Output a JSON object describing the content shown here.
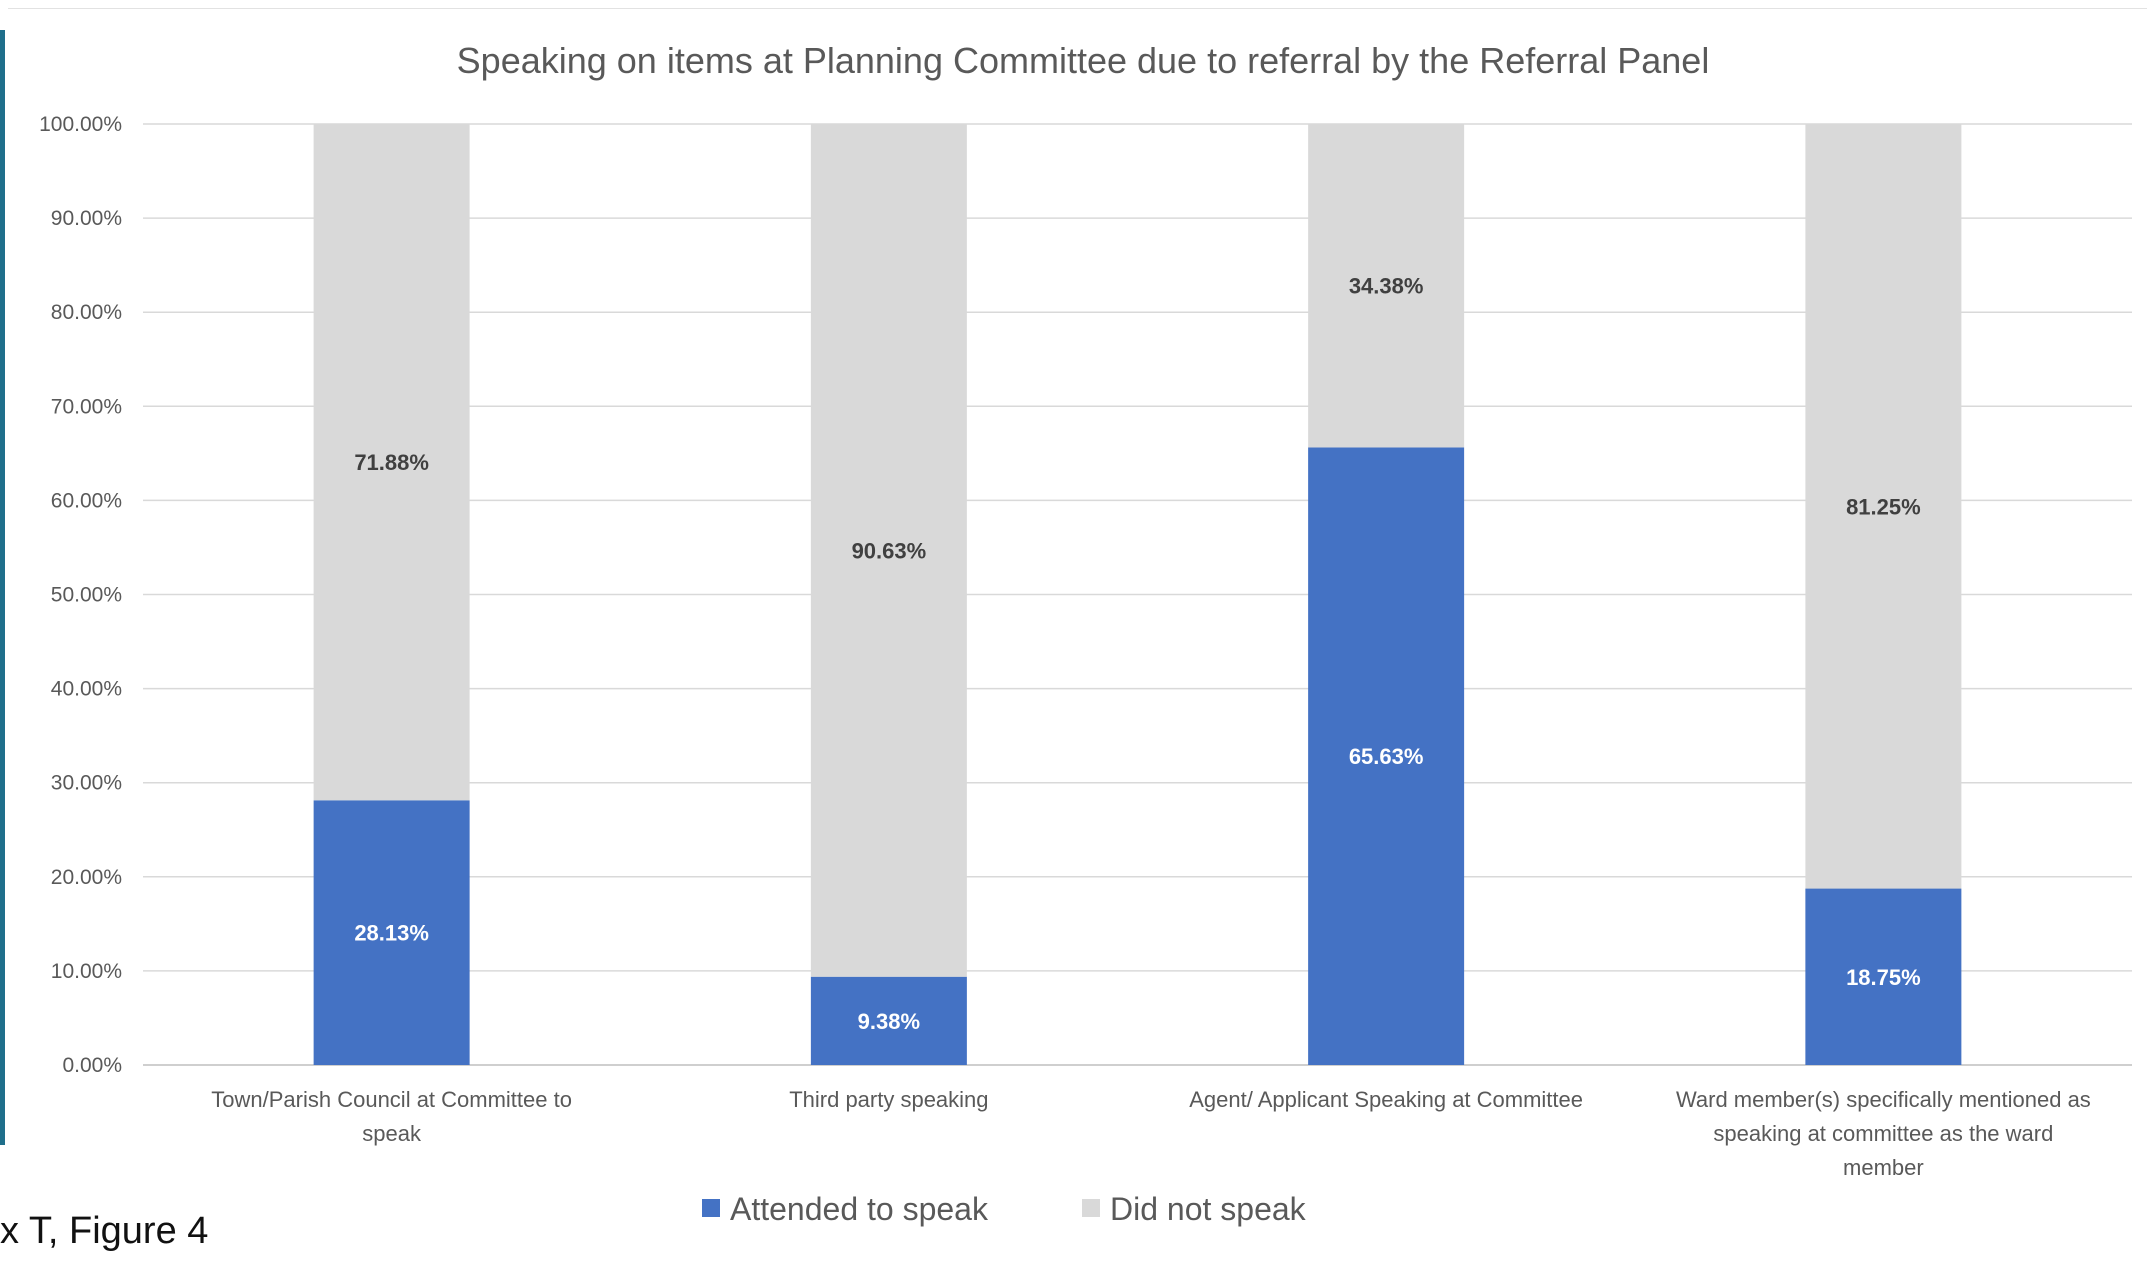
{
  "caption": "x T, Figure 4",
  "chart_data": {
    "type": "bar",
    "stacked": true,
    "title": "Speaking on items at Planning Committee due to referral by the Referral Panel",
    "categories": [
      "Town/Parish Council at Committee to speak",
      "Third party speaking",
      "Agent/ Applicant Speaking at Committee",
      "Ward member(s) specifically mentioned as speaking at committee as the ward member"
    ],
    "series": [
      {
        "name": "Attended to speak",
        "color": "#4472c4",
        "values": [
          28.13,
          9.38,
          65.63,
          18.75
        ],
        "labels": [
          "28.13%",
          "9.38%",
          "65.63%",
          "18.75%"
        ]
      },
      {
        "name": "Did not speak",
        "color": "#d9d9d9",
        "values": [
          71.88,
          90.63,
          34.38,
          81.25
        ],
        "labels": [
          "71.88%",
          "90.63%",
          "34.38%",
          "81.25%"
        ]
      }
    ],
    "y_ticks": [
      "0.00%",
      "10.00%",
      "20.00%",
      "30.00%",
      "40.00%",
      "50.00%",
      "60.00%",
      "70.00%",
      "80.00%",
      "90.00%",
      "100.00%"
    ],
    "ylim": [
      0,
      100
    ],
    "grid": true,
    "legend_position": "bottom"
  }
}
